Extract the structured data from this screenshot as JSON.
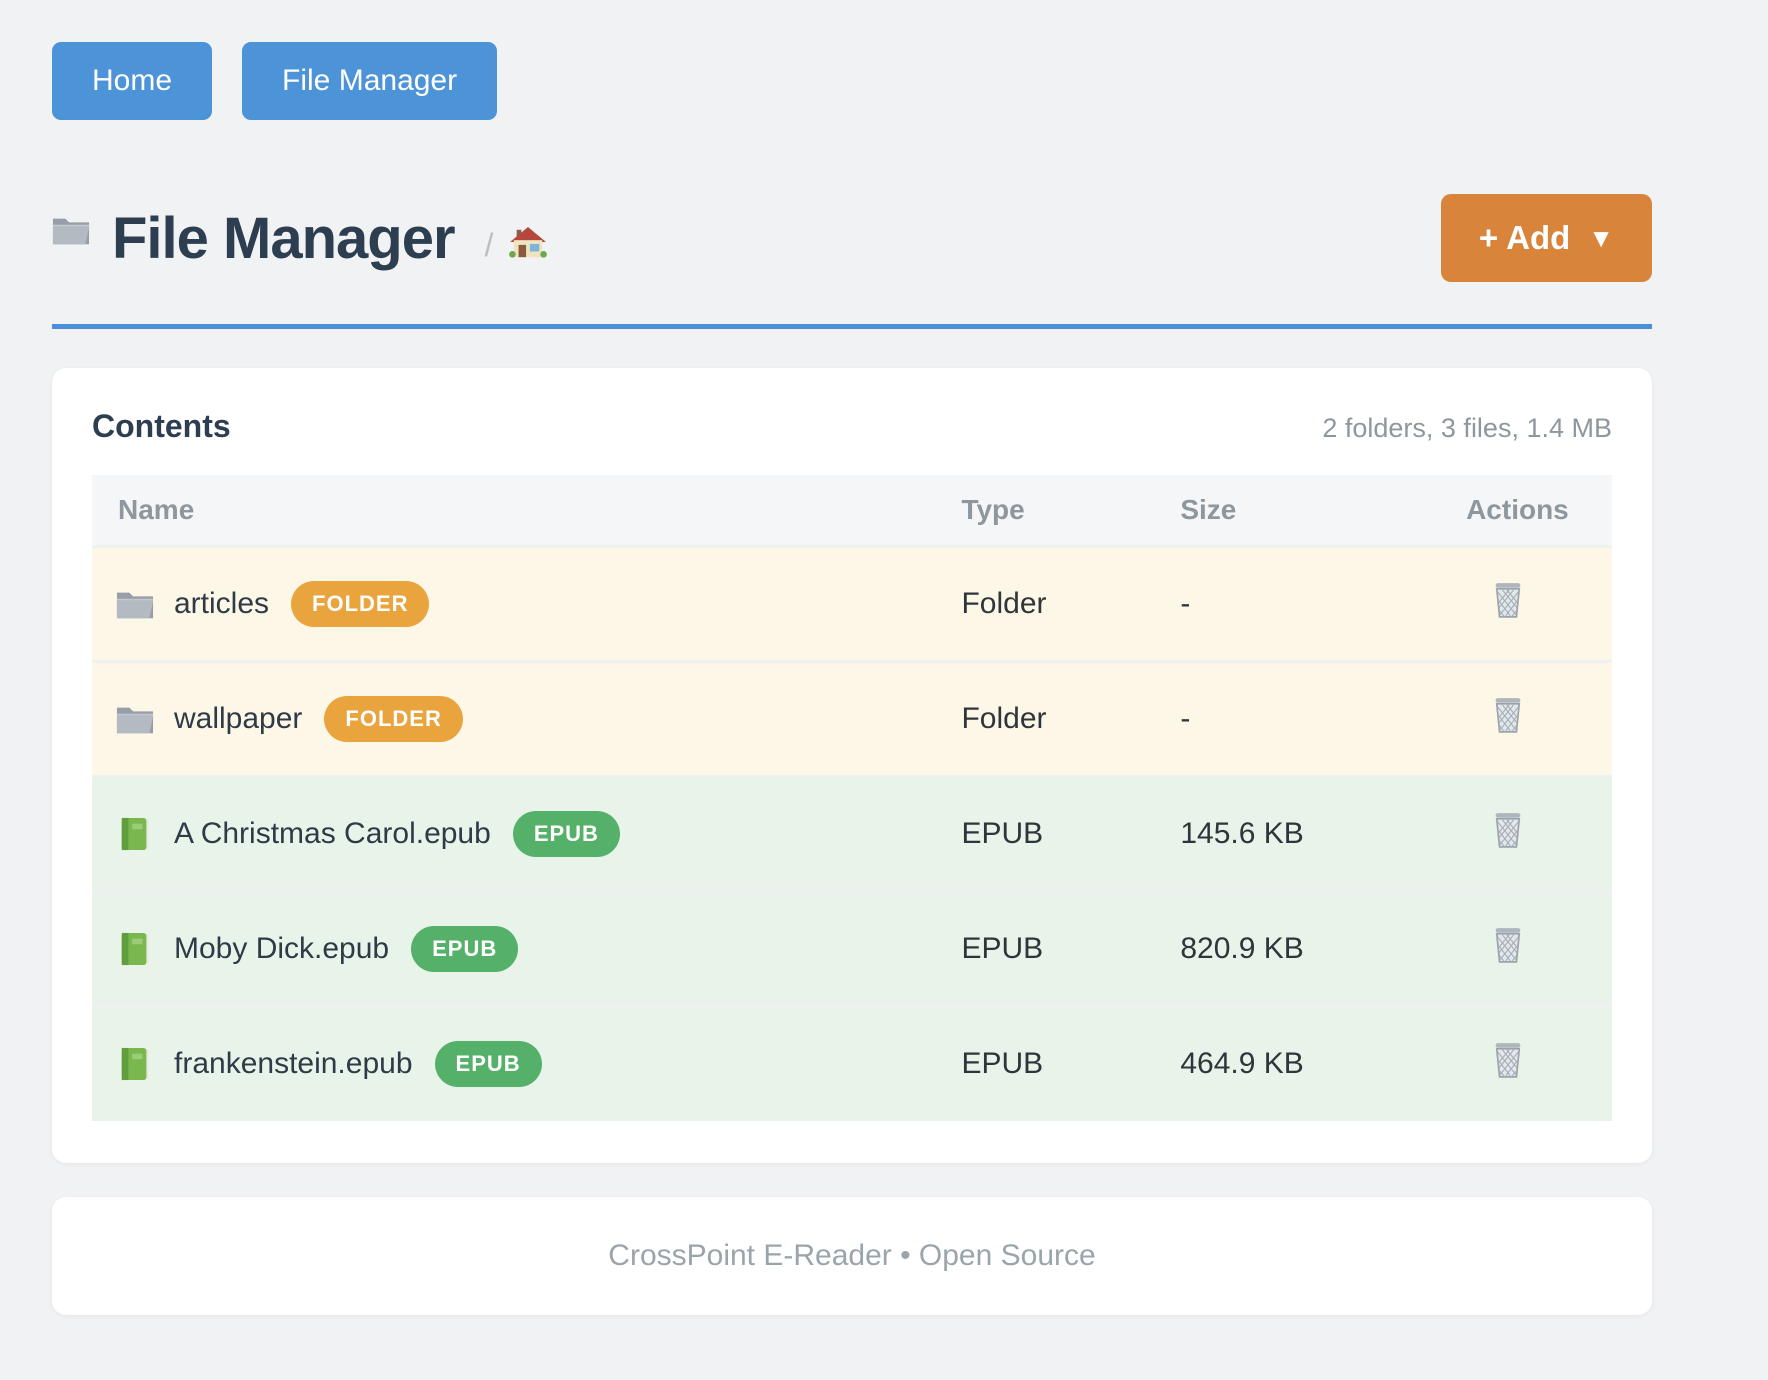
{
  "nav": {
    "buttons": [
      {
        "label": "Home"
      },
      {
        "label": "File Manager"
      }
    ]
  },
  "header": {
    "icon": "folder-icon",
    "title": "File Manager",
    "breadcrumb_separator": "/",
    "home_icon": "home-icon",
    "add_button": {
      "label": "+ Add",
      "caret": "▼"
    }
  },
  "card": {
    "title": "Contents",
    "summary": "2 folders, 3 files, 1.4 MB",
    "table": {
      "headers": [
        "Name",
        "Type",
        "Size",
        "Actions"
      ],
      "rows": [
        {
          "kind": "folder",
          "icon": "folder-icon",
          "name": "articles",
          "badge": "FOLDER",
          "type": "Folder",
          "size": "-",
          "action_icon": "trash-icon"
        },
        {
          "kind": "folder",
          "icon": "folder-icon",
          "name": "wallpaper",
          "badge": "FOLDER",
          "type": "Folder",
          "size": "-",
          "action_icon": "trash-icon"
        },
        {
          "kind": "epub",
          "icon": "book-icon",
          "name": "A Christmas Carol.epub",
          "badge": "EPUB",
          "type": "EPUB",
          "size": "145.6 KB",
          "action_icon": "trash-icon"
        },
        {
          "kind": "epub",
          "icon": "book-icon",
          "name": "Moby Dick.epub",
          "badge": "EPUB",
          "type": "EPUB",
          "size": "820.9 KB",
          "action_icon": "trash-icon"
        },
        {
          "kind": "epub",
          "icon": "book-icon",
          "name": "frankenstein.epub",
          "badge": "EPUB",
          "type": "EPUB",
          "size": "464.9 KB",
          "action_icon": "trash-icon"
        }
      ]
    }
  },
  "footer": {
    "text": "CrossPoint E-Reader • Open Source"
  },
  "colors": {
    "nav_button": "#4d93d8",
    "add_button": "#d9843b",
    "title_rule": "#4a90d8",
    "folder_row_bg": "#fdf7e7",
    "epub_row_bg": "#e8f3ea",
    "folder_badge": "#e9a43e",
    "epub_badge": "#55b169",
    "heading_text": "#2d3e50",
    "muted_text": "#8e979e",
    "page_bg": "#f1f2f3"
  }
}
